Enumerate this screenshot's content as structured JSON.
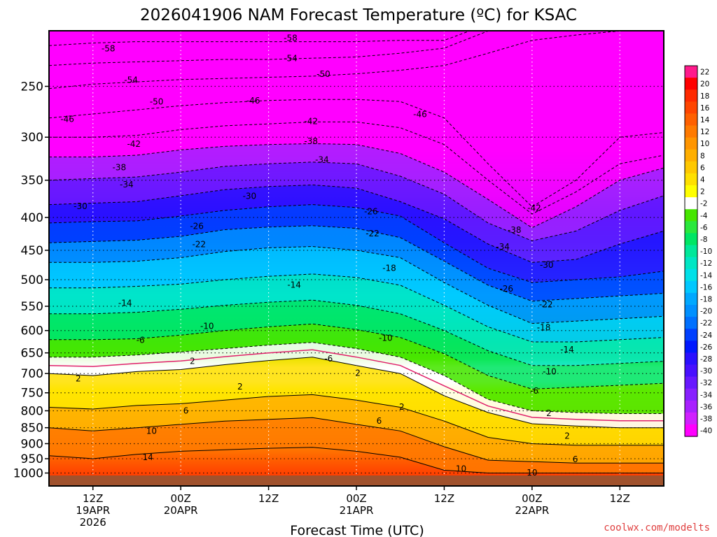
{
  "title": "2026041906 NAM Forecast Temperature (ºC) for KSAC",
  "credit": "coolwx.com/modelts",
  "colors": {
    "credit": "#e04040",
    "ground": "#a0522d",
    "freezing_line": "#e0206a"
  },
  "chart_data": {
    "type": "heatmap",
    "title": "2026041906 NAM Forecast Temperature (ºC) for KSAC",
    "xlabel": "Forecast Time (UTC)",
    "ylabel": "",
    "x_unit": "forecast hour",
    "xlim": [
      0,
      84
    ],
    "y_unit": "hPa",
    "ylim": [
      1000,
      200
    ],
    "y_scale": "log",
    "y_ticks": [
      250,
      300,
      350,
      400,
      450,
      500,
      550,
      600,
      650,
      700,
      750,
      800,
      850,
      900,
      950,
      1000
    ],
    "x_ticks": [
      {
        "hour": 6,
        "lines": [
          "12Z",
          "19APR",
          "2026"
        ]
      },
      {
        "hour": 18,
        "lines": [
          "00Z",
          "20APR"
        ]
      },
      {
        "hour": 30,
        "lines": [
          "12Z"
        ]
      },
      {
        "hour": 42,
        "lines": [
          "00Z",
          "21APR"
        ]
      },
      {
        "hour": 54,
        "lines": [
          "12Z"
        ]
      },
      {
        "hour": 66,
        "lines": [
          "00Z",
          "22APR"
        ]
      },
      {
        "hour": 78,
        "lines": [
          "12Z"
        ]
      }
    ],
    "grid": true,
    "colorbar": {
      "placement": "right",
      "labels": [
        22,
        20,
        18,
        16,
        14,
        12,
        10,
        8,
        6,
        4,
        2,
        -2,
        -4,
        -6,
        -8,
        -10,
        -12,
        -14,
        -16,
        -18,
        -20,
        -22,
        -24,
        -26,
        -28,
        -30,
        -32,
        -34,
        -36,
        -38,
        -40
      ],
      "colors": [
        "#ff1a8c",
        "#ff0000",
        "#ff2a00",
        "#ff4500",
        "#ff6000",
        "#ff7a00",
        "#ff9500",
        "#ffaf00",
        "#ffc800",
        "#ffe000",
        "#ffff00",
        "#ffffff",
        "#46e600",
        "#2ae83c",
        "#00e664",
        "#00e89a",
        "#00e6c4",
        "#00e0e8",
        "#00c8ff",
        "#00a8ff",
        "#0090ff",
        "#0070ff",
        "#0040ff",
        "#0018ff",
        "#2a10ff",
        "#4810ff",
        "#6818ff",
        "#8820ff",
        "#a820ff",
        "#d020ff",
        "#ff00ff"
      ]
    },
    "x_hours": [
      0,
      6,
      12,
      18,
      24,
      30,
      36,
      42,
      48,
      54,
      60,
      66,
      72,
      78,
      84
    ],
    "isotherms": [
      {
        "temp": -58,
        "p": [
          216,
          214,
          213,
          213,
          213,
          213,
          213,
          213,
          212,
          212,
          200,
          200,
          200,
          200,
          200
        ]
      },
      {
        "temp": -54,
        "p": [
          232,
          230,
          229,
          228,
          227,
          227,
          226,
          225,
          222,
          218,
          205,
          202,
          202,
          200,
          200
        ]
      },
      {
        "temp": -50,
        "p": [
          252,
          248,
          246,
          244,
          243,
          242,
          241,
          239,
          236,
          232,
          222,
          212,
          208,
          205,
          205
        ]
      },
      {
        "temp": -46,
        "p": [
          280,
          276,
          272,
          268,
          265,
          263,
          262,
          262,
          264,
          280,
          330,
          385,
          350,
          300,
          295
        ]
      },
      {
        "temp": -42,
        "p": [
          300,
          300,
          298,
          292,
          288,
          286,
          284,
          284,
          290,
          308,
          350,
          395,
          365,
          330,
          320
        ]
      },
      {
        "temp": -38,
        "p": [
          322,
          322,
          320,
          314,
          310,
          308,
          307,
          308,
          318,
          340,
          375,
          415,
          385,
          350,
          335
        ]
      },
      {
        "temp": -34,
        "p": [
          350,
          348,
          346,
          340,
          333,
          330,
          328,
          330,
          345,
          368,
          408,
          435,
          420,
          390,
          370
        ]
      },
      {
        "temp": -30,
        "p": [
          382,
          380,
          378,
          370,
          362,
          358,
          356,
          360,
          378,
          402,
          440,
          470,
          465,
          440,
          420
        ]
      },
      {
        "temp": -26,
        "p": [
          408,
          406,
          405,
          398,
          390,
          385,
          382,
          386,
          398,
          438,
          480,
          505,
          500,
          495,
          485
        ]
      },
      {
        "temp": -22,
        "p": [
          438,
          436,
          434,
          428,
          418,
          414,
          412,
          416,
          430,
          468,
          510,
          540,
          535,
          530,
          525
        ]
      },
      {
        "temp": -18,
        "p": [
          470,
          470,
          468,
          462,
          452,
          446,
          444,
          450,
          462,
          505,
          548,
          585,
          580,
          575,
          570
        ]
      },
      {
        "temp": -14,
        "p": [
          515,
          515,
          512,
          508,
          500,
          494,
          490,
          496,
          510,
          548,
          592,
          625,
          625,
          620,
          615
        ]
      },
      {
        "temp": -10,
        "p": [
          565,
          565,
          562,
          556,
          548,
          542,
          538,
          548,
          565,
          600,
          645,
          680,
          680,
          675,
          670
        ]
      },
      {
        "temp": -6,
        "p": [
          620,
          620,
          618,
          610,
          600,
          592,
          586,
          598,
          615,
          652,
          705,
          740,
          735,
          730,
          725
        ]
      },
      {
        "temp": -2,
        "p": [
          660,
          660,
          655,
          648,
          640,
          632,
          626,
          640,
          660,
          705,
          768,
          800,
          805,
          808,
          808
        ]
      },
      {
        "temp": 2,
        "p": [
          700,
          705,
          695,
          690,
          678,
          668,
          660,
          680,
          700,
          758,
          805,
          838,
          845,
          850,
          850
        ]
      },
      {
        "temp": 6,
        "p": [
          790,
          795,
          785,
          780,
          770,
          760,
          755,
          770,
          790,
          830,
          880,
          900,
          905,
          905,
          905
        ]
      },
      {
        "temp": 10,
        "p": [
          850,
          860,
          850,
          840,
          830,
          825,
          820,
          840,
          860,
          910,
          955,
          960,
          965,
          965,
          965
        ]
      },
      {
        "temp": 14,
        "p": [
          940,
          950,
          935,
          925,
          920,
          915,
          912,
          925,
          945,
          990,
          1000,
          1000,
          1000,
          1000,
          1000
        ]
      }
    ],
    "isotherm_labels": [
      {
        "text": "-58",
        "x_hour": 8.1,
        "p": 218
      },
      {
        "text": "-58",
        "x_hour": 33.0,
        "p": 210
      },
      {
        "text": "-54",
        "x_hour": 33.0,
        "p": 226
      },
      {
        "text": "-54",
        "x_hour": 11.2,
        "p": 244
      },
      {
        "text": "-50",
        "x_hour": 37.5,
        "p": 239
      },
      {
        "text": "-50",
        "x_hour": 14.7,
        "p": 264
      },
      {
        "text": "-46",
        "x_hour": 27.9,
        "p": 263
      },
      {
        "text": "-46",
        "x_hour": 2.5,
        "p": 281
      },
      {
        "text": "-46",
        "x_hour": 50.7,
        "p": 276
      },
      {
        "text": "-42",
        "x_hour": 35.8,
        "p": 283
      },
      {
        "text": "-42",
        "x_hour": 11.6,
        "p": 307
      },
      {
        "text": "-42",
        "x_hour": 66.3,
        "p": 386
      },
      {
        "text": "-38",
        "x_hour": 35.8,
        "p": 304
      },
      {
        "text": "-38",
        "x_hour": 9.6,
        "p": 334
      },
      {
        "text": "-38",
        "x_hour": 63.6,
        "p": 418
      },
      {
        "text": "-34",
        "x_hour": 37.3,
        "p": 325
      },
      {
        "text": "-34",
        "x_hour": 10.6,
        "p": 355
      },
      {
        "text": "-34",
        "x_hour": 62.0,
        "p": 444
      },
      {
        "text": "-30",
        "x_hour": 27.4,
        "p": 370
      },
      {
        "text": "-30",
        "x_hour": 4.3,
        "p": 384
      },
      {
        "text": "-30",
        "x_hour": 68.0,
        "p": 474
      },
      {
        "text": "-26",
        "x_hour": 44.0,
        "p": 391
      },
      {
        "text": "-26",
        "x_hour": 20.2,
        "p": 412
      },
      {
        "text": "-26",
        "x_hour": 62.5,
        "p": 516
      },
      {
        "text": "-22",
        "x_hour": 44.2,
        "p": 423
      },
      {
        "text": "-22",
        "x_hour": 20.5,
        "p": 440
      },
      {
        "text": "-22",
        "x_hour": 67.9,
        "p": 546
      },
      {
        "text": "-18",
        "x_hour": 46.5,
        "p": 479
      },
      {
        "text": "-18",
        "x_hour": 67.6,
        "p": 593
      },
      {
        "text": "-14",
        "x_hour": 33.5,
        "p": 509
      },
      {
        "text": "-14",
        "x_hour": 10.4,
        "p": 543
      },
      {
        "text": "-14",
        "x_hour": 70.8,
        "p": 642
      },
      {
        "text": "-10",
        "x_hour": 21.6,
        "p": 590
      },
      {
        "text": "-10",
        "x_hour": 46.0,
        "p": 616
      },
      {
        "text": "-10",
        "x_hour": 68.4,
        "p": 694
      },
      {
        "text": "-6",
        "x_hour": 12.5,
        "p": 620
      },
      {
        "text": "-6",
        "x_hour": 38.2,
        "p": 663
      },
      {
        "text": "-6",
        "x_hour": 66.3,
        "p": 744
      },
      {
        "text": "2",
        "x_hour": 19.6,
        "p": 669
      },
      {
        "text": "2",
        "x_hour": 4.0,
        "p": 712
      },
      {
        "text": "2",
        "x_hour": 26.1,
        "p": 733
      },
      {
        "text": "2",
        "x_hour": 42.2,
        "p": 698
      },
      {
        "text": "2",
        "x_hour": 48.2,
        "p": 788
      },
      {
        "text": "2",
        "x_hour": 68.3,
        "p": 806
      },
      {
        "text": "2",
        "x_hour": 70.8,
        "p": 875
      },
      {
        "text": "6",
        "x_hour": 18.7,
        "p": 799
      },
      {
        "text": "6",
        "x_hour": 45.1,
        "p": 829
      },
      {
        "text": "6",
        "x_hour": 71.9,
        "p": 951
      },
      {
        "text": "10",
        "x_hour": 14.0,
        "p": 859
      },
      {
        "text": "10",
        "x_hour": 56.3,
        "p": 984
      },
      {
        "text": "10",
        "x_hour": 66.0,
        "p": 997
      },
      {
        "text": "14",
        "x_hour": 13.5,
        "p": 944
      }
    ]
  }
}
